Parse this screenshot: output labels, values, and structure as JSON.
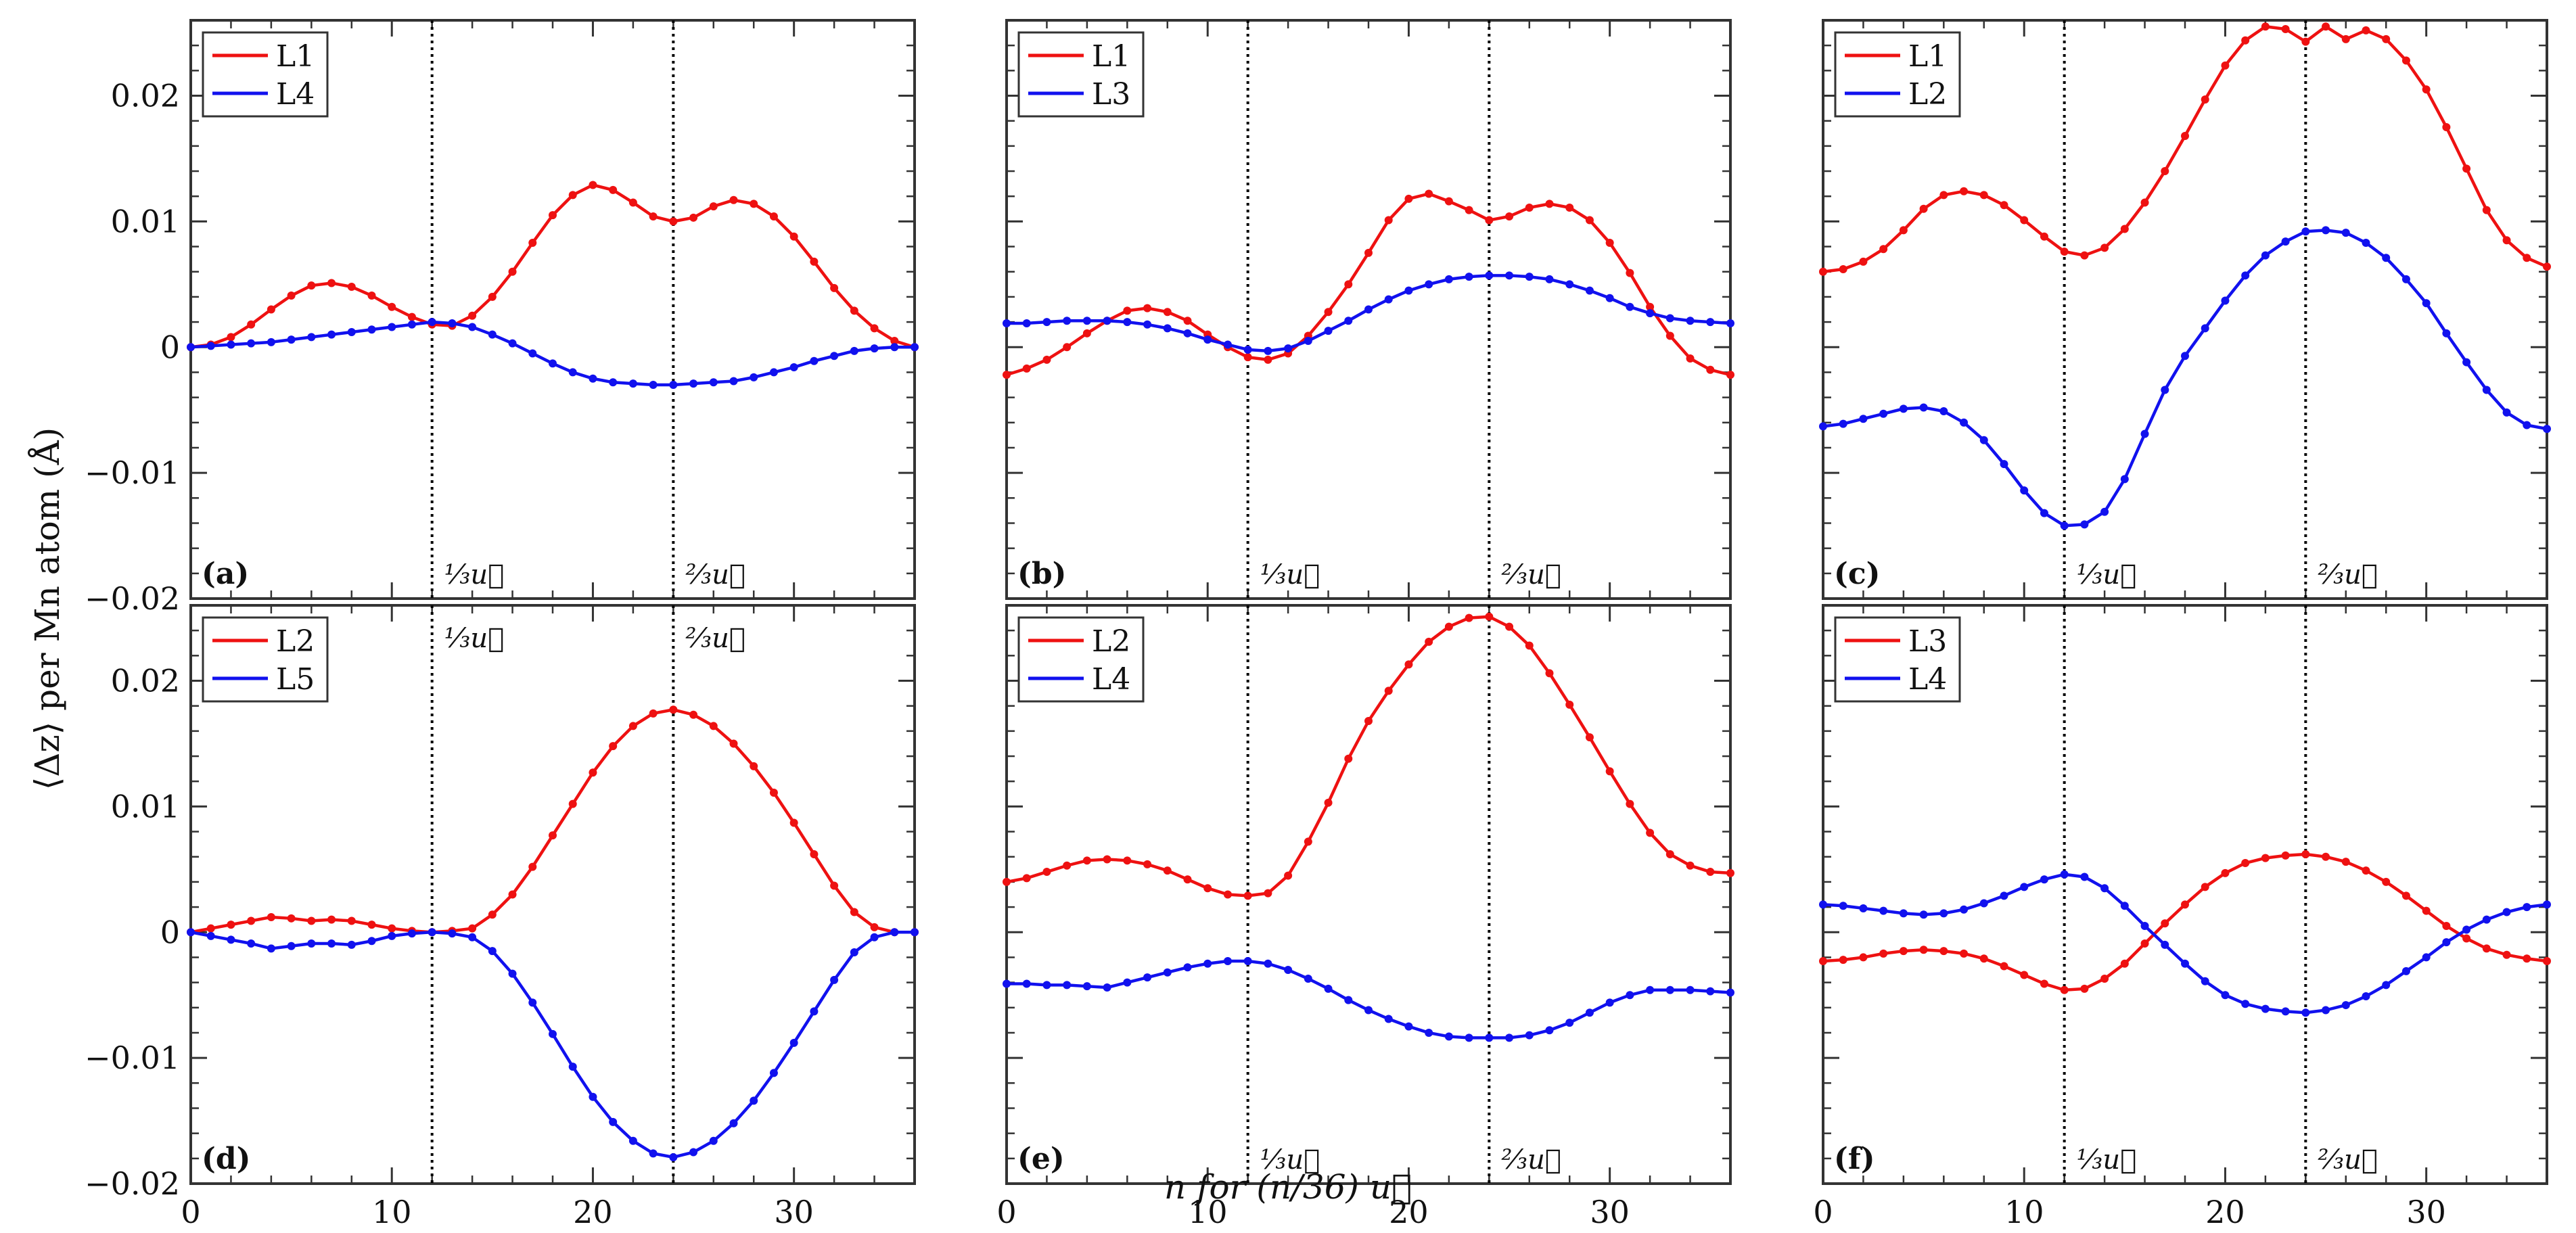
{
  "figure": {
    "ylabel": "⟨Δz⟩ per Mn atom (Å)",
    "xlabel": "n for (n/36) u⃗"
  },
  "colors": {
    "red": "#ee1111",
    "blue": "#1111ee",
    "axis": "#333333",
    "guide": "#000000"
  },
  "chart_data": [
    {
      "type": "line",
      "panel_label": "(a)",
      "xlim": [
        0,
        36
      ],
      "ylim": [
        -0.02,
        0.026
      ],
      "xticks": [
        0,
        10,
        20,
        30
      ],
      "xtick_labels": [
        "",
        "",
        "",
        ""
      ],
      "yticks": [
        -0.02,
        -0.01,
        0,
        0.01,
        0.02
      ],
      "ytick_labels": [
        "−0.02",
        "−0.01",
        "0",
        "0.01",
        "0.02"
      ],
      "vlines": [
        {
          "x": 12,
          "label": "⅓u⃗"
        },
        {
          "x": 24,
          "label": "⅔u⃗"
        }
      ],
      "vline_label_pos": "bottom",
      "legend_position": "top-left",
      "series": [
        {
          "name": "L1",
          "color": "red",
          "y": [
            0,
            0.0002,
            0.0008,
            0.0018,
            0.003,
            0.0041,
            0.0049,
            0.0051,
            0.0048,
            0.0041,
            0.0032,
            0.0024,
            0.0018,
            0.0017,
            0.0025,
            0.004,
            0.006,
            0.0083,
            0.0105,
            0.0121,
            0.0129,
            0.0125,
            0.0115,
            0.0104,
            0.01,
            0.0103,
            0.0112,
            0.0117,
            0.0114,
            0.0104,
            0.0088,
            0.0068,
            0.0047,
            0.0029,
            0.0015,
            0.0005,
            0
          ]
        },
        {
          "name": "L4",
          "color": "blue",
          "y": [
            0,
            0.0001,
            0.0002,
            0.0003,
            0.0004,
            0.0006,
            0.0008,
            0.001,
            0.0012,
            0.0014,
            0.0016,
            0.0018,
            0.002,
            0.0019,
            0.0016,
            0.001,
            0.0003,
            -0.0005,
            -0.0013,
            -0.002,
            -0.0025,
            -0.0028,
            -0.0029,
            -0.003,
            -0.003,
            -0.0029,
            -0.0028,
            -0.0027,
            -0.0024,
            -0.002,
            -0.0016,
            -0.0011,
            -0.0007,
            -0.0003,
            -0.0001,
            0,
            0
          ]
        }
      ]
    },
    {
      "type": "line",
      "panel_label": "(b)",
      "xlim": [
        0,
        36
      ],
      "ylim": [
        -0.02,
        0.026
      ],
      "xticks": [
        0,
        10,
        20,
        30
      ],
      "xtick_labels": [
        "",
        "",
        "",
        ""
      ],
      "yticks": [
        -0.02,
        -0.01,
        0,
        0.01,
        0.02
      ],
      "ytick_labels": [
        "",
        "",
        "",
        "",
        ""
      ],
      "vlines": [
        {
          "x": 12,
          "label": "⅓u⃗"
        },
        {
          "x": 24,
          "label": "⅔u⃗"
        }
      ],
      "vline_label_pos": "bottom",
      "legend_position": "top-left",
      "series": [
        {
          "name": "L1",
          "color": "red",
          "y": [
            -0.0022,
            -0.0017,
            -0.001,
            0,
            0.0011,
            0.0021,
            0.0029,
            0.0031,
            0.0028,
            0.0021,
            0.001,
            0,
            -0.0008,
            -0.001,
            -0.0005,
            0.0009,
            0.0028,
            0.005,
            0.0075,
            0.0101,
            0.0118,
            0.0122,
            0.0116,
            0.0109,
            0.0101,
            0.0104,
            0.0111,
            0.0114,
            0.0111,
            0.0101,
            0.0083,
            0.0059,
            0.0032,
            0.0009,
            -0.0009,
            -0.0018,
            -0.0022
          ]
        },
        {
          "name": "L3",
          "color": "blue",
          "y": [
            0.0019,
            0.0019,
            0.002,
            0.0021,
            0.0021,
            0.0021,
            0.002,
            0.0018,
            0.0015,
            0.0011,
            0.0006,
            0.0002,
            -0.0002,
            -0.0003,
            -0.0001,
            0.0005,
            0.0013,
            0.0021,
            0.003,
            0.0038,
            0.0045,
            0.005,
            0.0054,
            0.0056,
            0.0057,
            0.0057,
            0.0056,
            0.0054,
            0.005,
            0.0045,
            0.0039,
            0.0032,
            0.0027,
            0.0023,
            0.0021,
            0.002,
            0.0019
          ]
        }
      ]
    },
    {
      "type": "line",
      "panel_label": "(c)",
      "xlim": [
        0,
        36
      ],
      "ylim": [
        -0.02,
        0.026
      ],
      "xticks": [
        0,
        10,
        20,
        30
      ],
      "xtick_labels": [
        "",
        "",
        "",
        ""
      ],
      "yticks": [
        -0.02,
        -0.01,
        0,
        0.01,
        0.02
      ],
      "ytick_labels": [
        "",
        "",
        "",
        "",
        ""
      ],
      "vlines": [
        {
          "x": 12,
          "label": "⅓u⃗"
        },
        {
          "x": 24,
          "label": "⅔u⃗"
        }
      ],
      "vline_label_pos": "bottom",
      "legend_position": "top-left",
      "series": [
        {
          "name": "L1",
          "color": "red",
          "y": [
            0.006,
            0.0062,
            0.0068,
            0.0078,
            0.0093,
            0.011,
            0.0121,
            0.0124,
            0.0121,
            0.0113,
            0.0101,
            0.0088,
            0.0076,
            0.0073,
            0.0079,
            0.0094,
            0.0115,
            0.014,
            0.0168,
            0.0197,
            0.0224,
            0.0244,
            0.0255,
            0.0253,
            0.0243,
            0.0255,
            0.0245,
            0.0252,
            0.0245,
            0.0228,
            0.0205,
            0.0175,
            0.0142,
            0.0109,
            0.0085,
            0.0071,
            0.0064
          ]
        },
        {
          "name": "L2",
          "color": "blue",
          "y": [
            -0.0063,
            -0.0061,
            -0.0057,
            -0.0053,
            -0.0049,
            -0.0048,
            -0.0051,
            -0.006,
            -0.0074,
            -0.0093,
            -0.0114,
            -0.0132,
            -0.0142,
            -0.0141,
            -0.0131,
            -0.0105,
            -0.0069,
            -0.0034,
            -0.0007,
            0.0015,
            0.0037,
            0.0057,
            0.0073,
            0.0084,
            0.0092,
            0.0093,
            0.0091,
            0.0083,
            0.0071,
            0.0054,
            0.0035,
            0.0011,
            -0.0012,
            -0.0034,
            -0.0052,
            -0.0062,
            -0.0065
          ]
        }
      ]
    },
    {
      "type": "line",
      "panel_label": "(d)",
      "xlim": [
        0,
        36
      ],
      "ylim": [
        -0.02,
        0.026
      ],
      "xticks": [
        0,
        10,
        20,
        30
      ],
      "xtick_labels": [
        "0",
        "10",
        "20",
        "30"
      ],
      "yticks": [
        -0.02,
        -0.01,
        0,
        0.01,
        0.02
      ],
      "ytick_labels": [
        "−0.02",
        "−0.01",
        "0",
        "0.01",
        "0.02"
      ],
      "vlines": [
        {
          "x": 12,
          "label": "⅓u⃗"
        },
        {
          "x": 24,
          "label": "⅔u⃗"
        }
      ],
      "vline_label_pos": "top",
      "legend_position": "top-left",
      "series": [
        {
          "name": "L2",
          "color": "red",
          "y": [
            0,
            0.0003,
            0.0006,
            0.0009,
            0.0012,
            0.0011,
            0.0009,
            0.001,
            0.0009,
            0.0006,
            0.0003,
            0.0001,
            0,
            0.0001,
            0.0003,
            0.0014,
            0.003,
            0.0052,
            0.0077,
            0.0102,
            0.0127,
            0.0148,
            0.0164,
            0.0174,
            0.0177,
            0.0173,
            0.0164,
            0.015,
            0.0132,
            0.0111,
            0.0087,
            0.0062,
            0.0037,
            0.0016,
            0.0004,
            0,
            0
          ]
        },
        {
          "name": "L5",
          "color": "blue",
          "y": [
            0,
            -0.0003,
            -0.0006,
            -0.0009,
            -0.0013,
            -0.0011,
            -0.0009,
            -0.0009,
            -0.001,
            -0.0007,
            -0.0003,
            -0.0001,
            0,
            -0.0001,
            -0.0004,
            -0.0015,
            -0.0033,
            -0.0056,
            -0.0081,
            -0.0107,
            -0.0131,
            -0.0151,
            -0.0166,
            -0.0176,
            -0.0179,
            -0.0175,
            -0.0166,
            -0.0152,
            -0.0134,
            -0.0112,
            -0.0088,
            -0.0063,
            -0.0038,
            -0.0016,
            -0.0004,
            0,
            0
          ]
        }
      ]
    },
    {
      "type": "line",
      "panel_label": "(e)",
      "xlim": [
        0,
        36
      ],
      "ylim": [
        -0.02,
        0.026
      ],
      "xticks": [
        0,
        10,
        20,
        30
      ],
      "xtick_labels": [
        "0",
        "10",
        "20",
        "30"
      ],
      "yticks": [
        -0.02,
        -0.01,
        0,
        0.01,
        0.02
      ],
      "ytick_labels": [
        "",
        "",
        "",
        "",
        ""
      ],
      "vlines": [
        {
          "x": 12,
          "label": "⅓u⃗"
        },
        {
          "x": 24,
          "label": "⅔u⃗"
        }
      ],
      "vline_label_pos": "bottom",
      "legend_position": "top-left",
      "series": [
        {
          "name": "L2",
          "color": "red",
          "y": [
            0.004,
            0.0043,
            0.0048,
            0.0053,
            0.0057,
            0.0058,
            0.0057,
            0.0054,
            0.0049,
            0.0042,
            0.0035,
            0.003,
            0.0029,
            0.0031,
            0.0045,
            0.0072,
            0.0103,
            0.0138,
            0.0168,
            0.0192,
            0.0213,
            0.0231,
            0.0243,
            0.025,
            0.0251,
            0.0243,
            0.0228,
            0.0206,
            0.0181,
            0.0155,
            0.0128,
            0.0102,
            0.0079,
            0.0062,
            0.0053,
            0.0048,
            0.0047
          ]
        },
        {
          "name": "L4",
          "color": "blue",
          "y": [
            -0.0041,
            -0.0041,
            -0.0042,
            -0.0042,
            -0.0043,
            -0.0044,
            -0.004,
            -0.0036,
            -0.0032,
            -0.0028,
            -0.0025,
            -0.0023,
            -0.0023,
            -0.0025,
            -0.003,
            -0.0037,
            -0.0045,
            -0.0054,
            -0.0062,
            -0.0069,
            -0.0075,
            -0.008,
            -0.0083,
            -0.0084,
            -0.0084,
            -0.0084,
            -0.0082,
            -0.0078,
            -0.0072,
            -0.0064,
            -0.0056,
            -0.005,
            -0.0046,
            -0.0046,
            -0.0046,
            -0.0047,
            -0.0048
          ]
        }
      ]
    },
    {
      "type": "line",
      "panel_label": "(f)",
      "xlim": [
        0,
        36
      ],
      "ylim": [
        -0.02,
        0.026
      ],
      "xticks": [
        0,
        10,
        20,
        30
      ],
      "xtick_labels": [
        "0",
        "10",
        "20",
        "30"
      ],
      "yticks": [
        -0.02,
        -0.01,
        0,
        0.01,
        0.02
      ],
      "ytick_labels": [
        "",
        "",
        "",
        "",
        ""
      ],
      "vlines": [
        {
          "x": 12,
          "label": "⅓u⃗"
        },
        {
          "x": 24,
          "label": "⅔u⃗"
        }
      ],
      "vline_label_pos": "bottom",
      "legend_position": "top-left",
      "series": [
        {
          "name": "L3",
          "color": "red",
          "y": [
            -0.0023,
            -0.0022,
            -0.002,
            -0.0017,
            -0.0015,
            -0.0014,
            -0.0015,
            -0.0017,
            -0.0021,
            -0.0027,
            -0.0034,
            -0.0041,
            -0.0046,
            -0.0045,
            -0.0037,
            -0.0025,
            -0.0009,
            0.0007,
            0.0022,
            0.0036,
            0.0047,
            0.0055,
            0.0059,
            0.0061,
            0.0062,
            0.006,
            0.0056,
            0.0049,
            0.004,
            0.0029,
            0.0017,
            0.0005,
            -0.0005,
            -0.0013,
            -0.0018,
            -0.0021,
            -0.0023
          ]
        },
        {
          "name": "L4",
          "color": "blue",
          "y": [
            0.0022,
            0.0021,
            0.0019,
            0.0017,
            0.0015,
            0.0014,
            0.0015,
            0.0018,
            0.0023,
            0.0029,
            0.0036,
            0.0042,
            0.0046,
            0.0044,
            0.0035,
            0.0021,
            0.0005,
            -0.001,
            -0.0025,
            -0.0039,
            -0.005,
            -0.0057,
            -0.0061,
            -0.0063,
            -0.0064,
            -0.0062,
            -0.0058,
            -0.0051,
            -0.0042,
            -0.0031,
            -0.002,
            -0.0008,
            0.0002,
            0.001,
            0.0016,
            0.002,
            0.0022
          ]
        }
      ]
    }
  ]
}
